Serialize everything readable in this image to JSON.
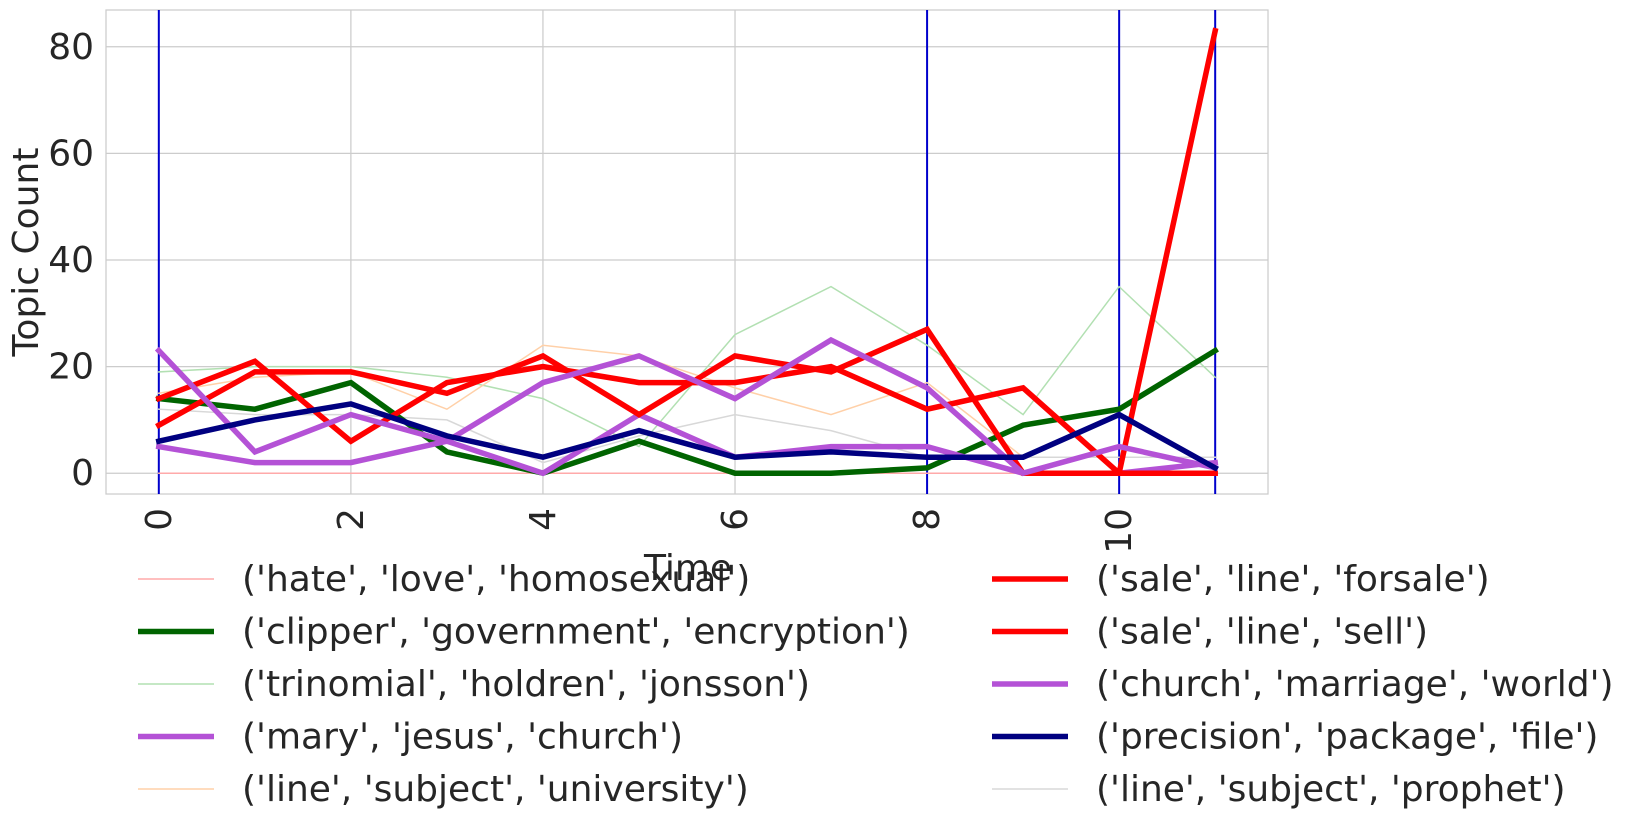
{
  "chart_data": {
    "type": "line",
    "title": "",
    "xlabel": "Time",
    "ylabel": "Topic Count",
    "xlim": [
      -0.55,
      11.55
    ],
    "ylim": [
      -3.9,
      86.9
    ],
    "x_ticks": [
      0,
      2,
      4,
      6,
      8,
      10
    ],
    "y_ticks": [
      0,
      20,
      40,
      60,
      80
    ],
    "grid": true,
    "legend_position": "bottom",
    "vertical_markers": [
      0,
      8,
      10,
      11
    ],
    "vertical_marker_color": "#0000cc",
    "x": [
      0,
      1,
      2,
      3,
      4,
      5,
      6,
      7,
      8,
      9,
      10,
      11
    ],
    "series": [
      {
        "name": "('hate', 'love', 'homosexual')",
        "color": "#ffaaaa",
        "emphasis": "thin",
        "values": [
          0,
          0,
          0,
          0,
          0,
          0,
          0,
          0,
          0,
          0,
          0,
          0
        ]
      },
      {
        "name": "('clipper', 'government', 'encryption')",
        "color": "#006400",
        "emphasis": "bold",
        "values": [
          14,
          12,
          17,
          4,
          0,
          6,
          0,
          0,
          1,
          9,
          12,
          23
        ]
      },
      {
        "name": "('trinomial', 'holdren', 'jonsson')",
        "color": "#b2e0b2",
        "emphasis": "thin",
        "values": [
          19,
          20,
          20,
          18,
          14,
          5,
          26,
          35,
          24,
          11,
          35,
          18
        ]
      },
      {
        "name": "('mary', 'jesus', 'church')",
        "color": "#b452d6",
        "emphasis": "bold",
        "values": [
          5,
          2,
          2,
          6,
          0,
          11,
          3,
          5,
          5,
          0,
          0,
          2
        ]
      },
      {
        "name": "('line', 'subject', 'university')",
        "color": "#ffd0a8",
        "emphasis": "thin",
        "values": [
          15,
          18,
          19,
          12,
          24,
          22,
          16,
          11,
          17,
          3,
          3,
          3
        ]
      },
      {
        "name": "('sale', 'line', 'forsale')",
        "color": "#ff0000",
        "emphasis": "bold",
        "values": [
          14,
          21,
          6,
          17,
          20,
          17,
          17,
          20,
          12,
          16,
          0,
          0
        ]
      },
      {
        "name": "('sale', 'line', 'sell')",
        "color": "#ff0000",
        "emphasis": "bold",
        "values": [
          9,
          19,
          19,
          15,
          22,
          11,
          22,
          19,
          27,
          0,
          0,
          83
        ]
      },
      {
        "name": "('church', 'marriage', 'world')",
        "color": "#b452d6",
        "emphasis": "bold",
        "values": [
          23,
          4,
          11,
          6,
          17,
          22,
          14,
          25,
          16,
          0,
          5,
          1
        ]
      },
      {
        "name": "('precision', 'package', 'file')",
        "color": "#000080",
        "emphasis": "bold",
        "values": [
          6,
          10,
          13,
          7,
          3,
          8,
          3,
          4,
          3,
          3,
          11,
          1
        ]
      },
      {
        "name": "('line', 'subject', 'prophet')",
        "color": "#d8d8d8",
        "emphasis": "thin",
        "values": [
          12,
          11,
          11,
          10,
          2,
          7,
          11,
          8,
          3,
          3,
          3,
          3
        ]
      }
    ]
  }
}
